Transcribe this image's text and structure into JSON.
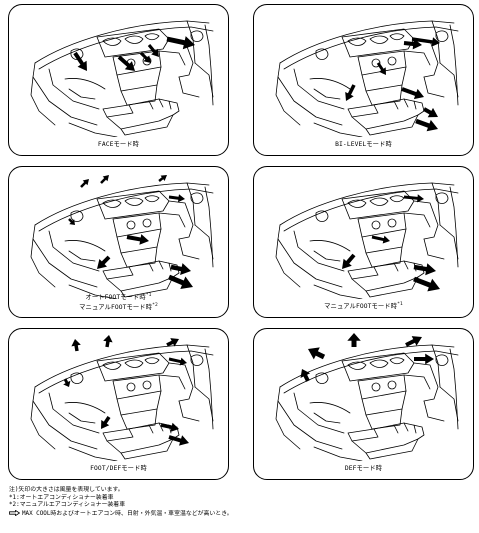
{
  "panels": [
    {
      "id": "face",
      "captions": [
        {
          "text": "FACEモード時",
          "sup": ""
        }
      ]
    },
    {
      "id": "bi-level",
      "captions": [
        {
          "text": "BI-LEVELモード時",
          "sup": ""
        }
      ]
    },
    {
      "id": "foot-auto",
      "captions": [
        {
          "text": "オートFOOTモード時",
          "sup": "*1"
        },
        {
          "text": "マニュアルFOOTモード時",
          "sup": "*2"
        }
      ]
    },
    {
      "id": "foot-manual",
      "captions": [
        {
          "text": "マニュアルFOOTモード時",
          "sup": "*1"
        }
      ]
    },
    {
      "id": "foot-def",
      "captions": [
        {
          "text": "FOOT/DEFモード時",
          "sup": ""
        }
      ]
    },
    {
      "id": "def",
      "captions": [
        {
          "text": "DEFモード時",
          "sup": ""
        }
      ]
    }
  ],
  "notes": {
    "line1": "注)矢印の大きさは風量を表現しています。",
    "line2": "*1:オートエアコンディショナー装着車",
    "line3": "*2:マニュアルエアコンディショナー装着車",
    "line4": "MAX COOL時およびオートエアコン時、日射・外気温・車室温などが高いとき。",
    "arrow_icon": "hollow-arrow-icon"
  }
}
